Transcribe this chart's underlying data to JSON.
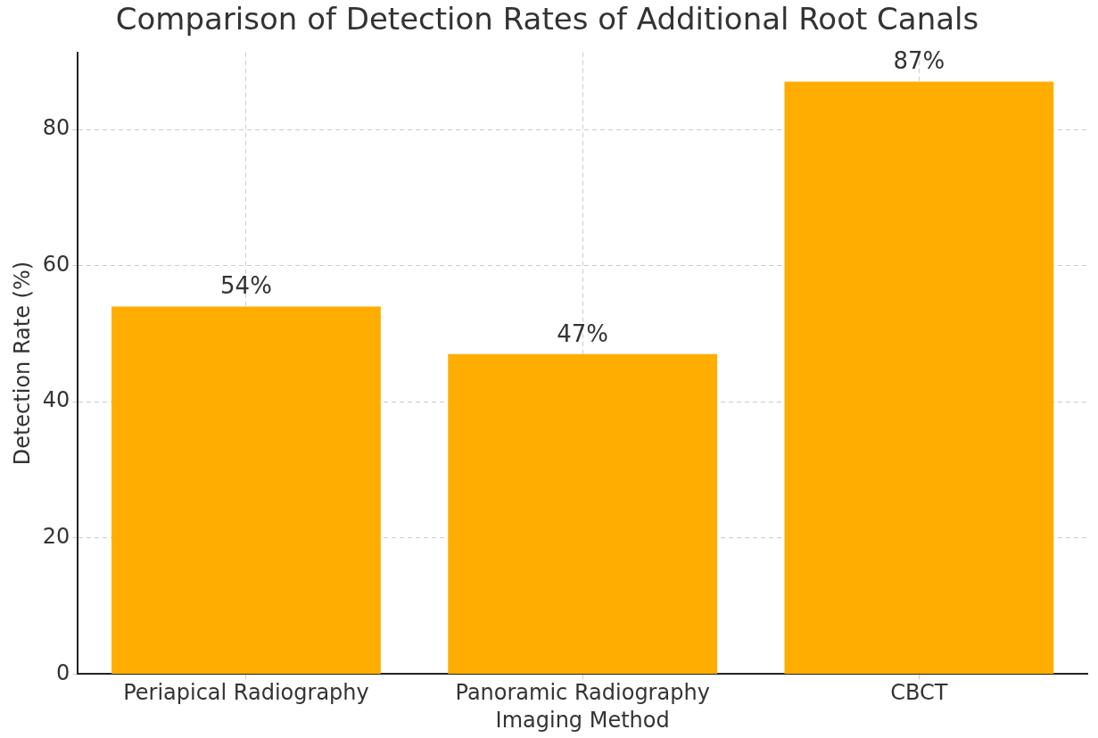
{
  "chart_data": {
    "type": "bar",
    "title": "Comparison of Detection Rates of Additional Root Canals",
    "xlabel": "Imaging Method",
    "ylabel": "Detection Rate (%)",
    "categories": [
      "Periapical Radiography",
      "Panoramic Radiography",
      "CBCT"
    ],
    "values": [
      54,
      47,
      87
    ],
    "color": "#ffad00",
    "value_labels": [
      "54%",
      "47%",
      "87%"
    ],
    "ylim": [
      0,
      91.3
    ],
    "yticks": [
      0,
      20,
      40,
      60,
      80
    ],
    "grid": true,
    "legend": false
  }
}
